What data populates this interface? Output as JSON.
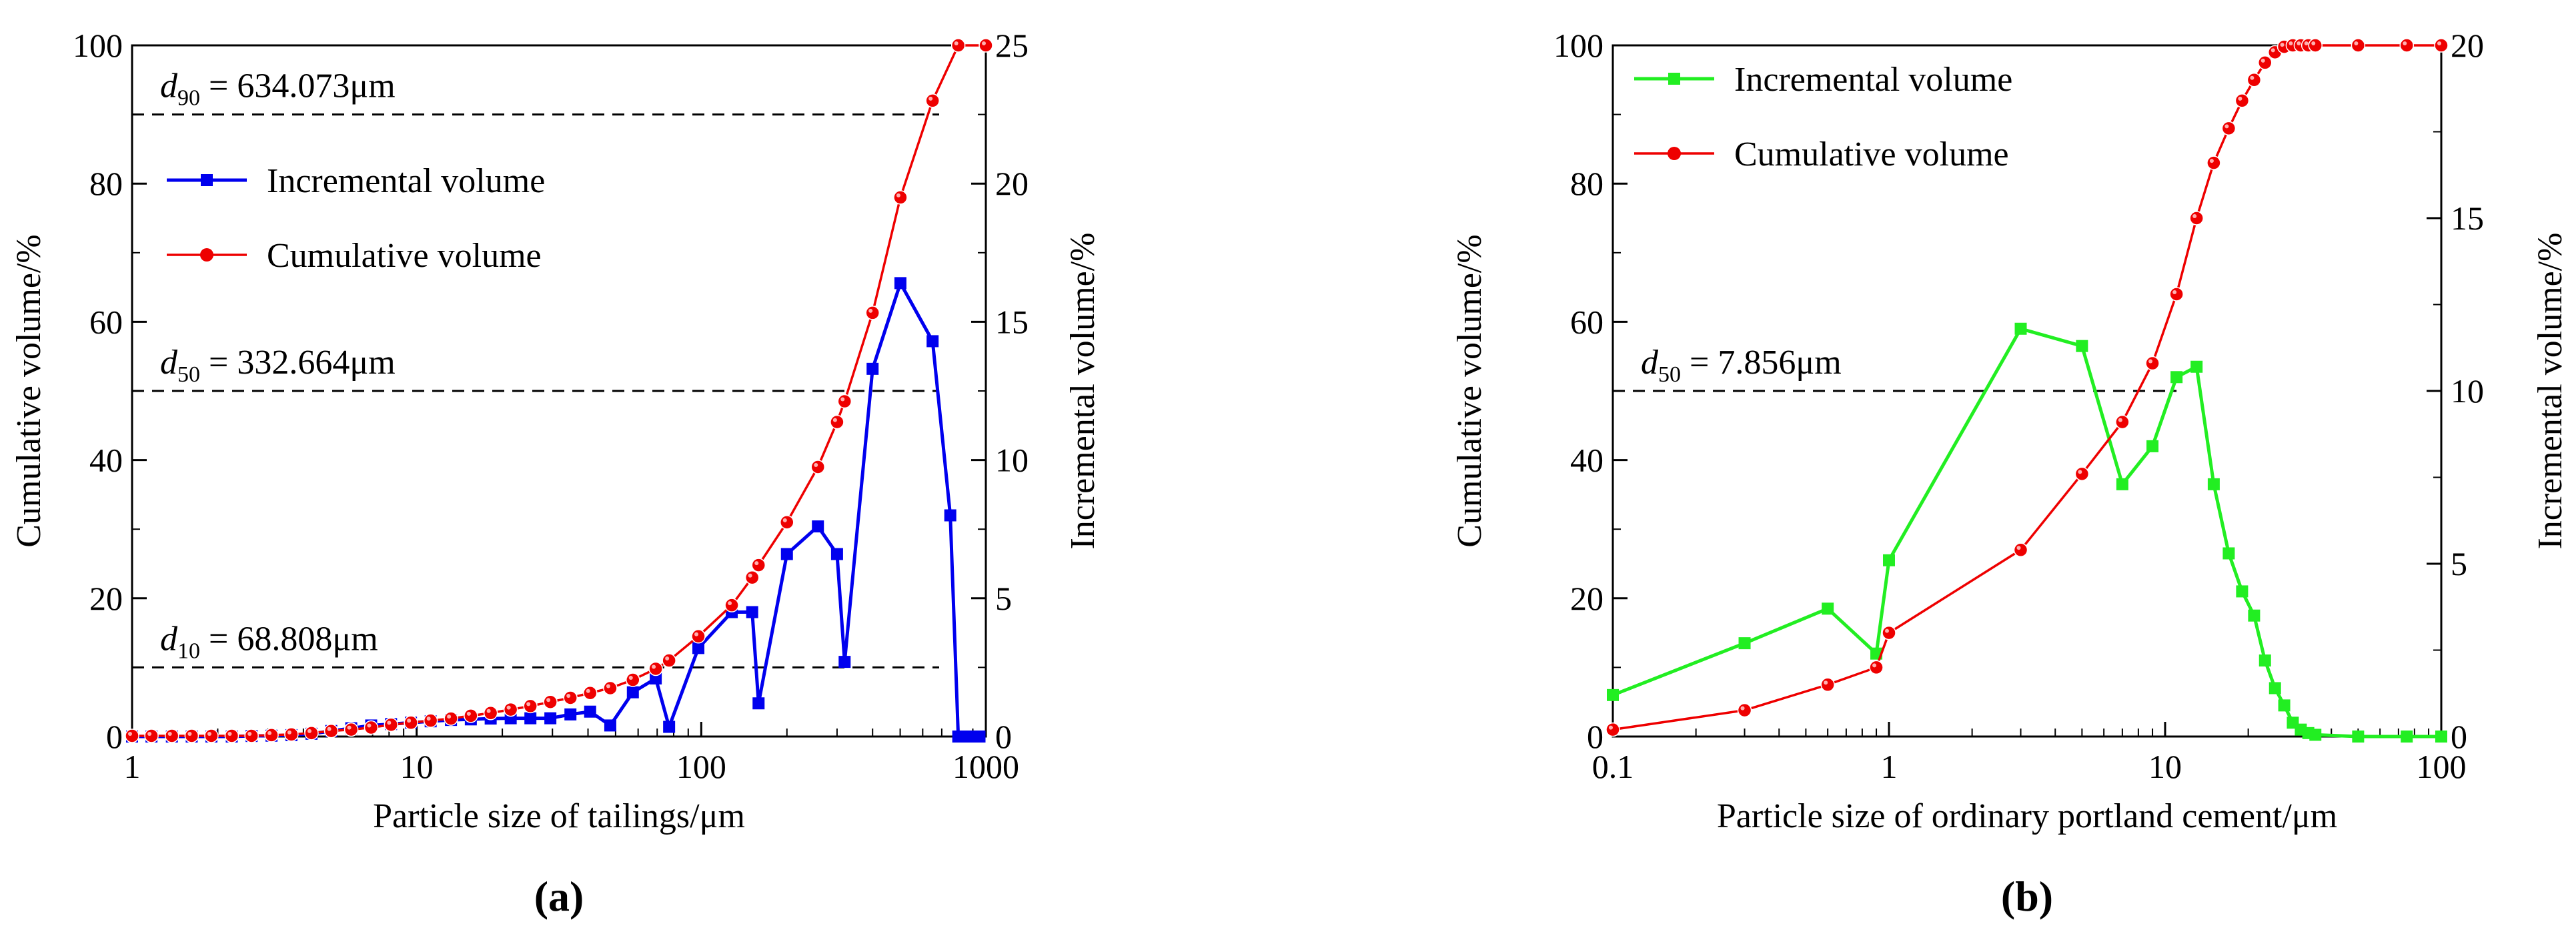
{
  "chart_data": [
    {
      "panel": "a",
      "type": "line",
      "caption": "(a)",
      "xlabel": "Particle size of tailings/μm",
      "ylabel_left": "Cumulative volume/%",
      "ylabel_right": "Incremental volume/%",
      "xscale": "log",
      "xlim": [
        1,
        1000
      ],
      "ylim_left": [
        0,
        100
      ],
      "ylim_right": [
        0,
        25
      ],
      "x_ticks": [
        1,
        10,
        100,
        1000
      ],
      "x_tick_labels": [
        "1",
        "10",
        "100",
        "1000"
      ],
      "y_left_ticks": [
        0,
        20,
        40,
        60,
        80,
        100
      ],
      "y_left_tick_labels": [
        "0",
        "20",
        "40",
        "60",
        "80",
        "100"
      ],
      "y_right_ticks": [
        0,
        5,
        10,
        15,
        20,
        25
      ],
      "y_right_tick_labels": [
        "0",
        "5",
        "10",
        "15",
        "20",
        "25"
      ],
      "legend_position": "upper-left",
      "reference_lines": [
        {
          "name": "d90",
          "sym": "d",
          "sub": "90",
          "text": " = 634.073μm",
          "y": 90
        },
        {
          "name": "d50",
          "sym": "d",
          "sub": "50",
          "text": " = 332.664μm",
          "y": 50
        },
        {
          "name": "d10",
          "sym": "d",
          "sub": "10",
          "text": " = 68.808μm",
          "y": 10
        }
      ],
      "series": [
        {
          "name": "Incremental volume",
          "axis": "right",
          "color": "#0000ee",
          "marker": "square",
          "points": [
            [
              1,
              0
            ],
            [
              1.17,
              0
            ],
            [
              1.38,
              0
            ],
            [
              1.62,
              0
            ],
            [
              1.9,
              0
            ],
            [
              2.24,
              0
            ],
            [
              2.63,
              0.02
            ],
            [
              3.09,
              0.03
            ],
            [
              3.63,
              0.05
            ],
            [
              4.27,
              0.1
            ],
            [
              5.01,
              0.2
            ],
            [
              5.89,
              0.3
            ],
            [
              6.92,
              0.4
            ],
            [
              8.13,
              0.45
            ],
            [
              9.55,
              0.5
            ],
            [
              11.2,
              0.55
            ],
            [
              13.2,
              0.6
            ],
            [
              15.5,
              0.62
            ],
            [
              18.2,
              0.65
            ],
            [
              21.4,
              0.66
            ],
            [
              25.1,
              0.66
            ],
            [
              29.5,
              0.66
            ],
            [
              34.7,
              0.8
            ],
            [
              40.7,
              0.9
            ],
            [
              47.9,
              0.4
            ],
            [
              57.5,
              1.6
            ],
            [
              69.2,
              2.1
            ],
            [
              77.1,
              0.35
            ],
            [
              97.7,
              3.2
            ],
            [
              128,
              4.5
            ],
            [
              151,
              4.5
            ],
            [
              159,
              1.2
            ],
            [
              200,
              6.6
            ],
            [
              257,
              7.6
            ],
            [
              300,
              6.6
            ],
            [
              319,
              2.7
            ],
            [
              400,
              13.3
            ],
            [
              501,
              16.4
            ],
            [
              650,
              14.3
            ],
            [
              750,
              8.0
            ],
            [
              800,
              0
            ],
            [
              850,
              0
            ],
            [
              900,
              0
            ],
            [
              950,
              0
            ]
          ]
        },
        {
          "name": "Cumulative volume",
          "axis": "left",
          "color": "#ee0000",
          "marker": "circle",
          "points": [
            [
              1,
              0.1
            ],
            [
              1.17,
              0.1
            ],
            [
              1.38,
              0.1
            ],
            [
              1.62,
              0.1
            ],
            [
              1.9,
              0.1
            ],
            [
              2.24,
              0.1
            ],
            [
              2.63,
              0.1
            ],
            [
              3.09,
              0.2
            ],
            [
              3.63,
              0.3
            ],
            [
              4.27,
              0.5
            ],
            [
              5.01,
              0.8
            ],
            [
              5.89,
              1.0
            ],
            [
              6.92,
              1.3
            ],
            [
              8.13,
              1.7
            ],
            [
              9.55,
              2.0
            ],
            [
              11.2,
              2.3
            ],
            [
              13.2,
              2.6
            ],
            [
              15.5,
              3.0
            ],
            [
              18.2,
              3.4
            ],
            [
              21.4,
              3.9
            ],
            [
              25.1,
              4.4
            ],
            [
              29.5,
              5.0
            ],
            [
              34.7,
              5.6
            ],
            [
              40.7,
              6.3
            ],
            [
              47.9,
              7.0
            ],
            [
              57.5,
              8.2
            ],
            [
              69.2,
              9.8
            ],
            [
              77.1,
              11.0
            ],
            [
              97.7,
              14.5
            ],
            [
              128,
              19.0
            ],
            [
              151,
              23.0
            ],
            [
              159,
              24.8
            ],
            [
              200,
              31.0
            ],
            [
              257,
              39.0
            ],
            [
              300,
              45.5
            ],
            [
              319,
              48.5
            ],
            [
              400,
              61.3
            ],
            [
              501,
              78.0
            ],
            [
              650,
              92.0
            ],
            [
              800,
              100
            ],
            [
              1000,
              100
            ]
          ]
        }
      ]
    },
    {
      "panel": "b",
      "type": "line",
      "caption": "(b)",
      "xlabel": "Particle size of ordinary portland cement/μm",
      "ylabel_left": "Cumulative volume/%",
      "ylabel_right": "Incremental volume/%",
      "xscale": "log",
      "xlim": [
        0.1,
        100
      ],
      "ylim_left": [
        0,
        100
      ],
      "ylim_right": [
        0,
        20
      ],
      "x_ticks": [
        0.1,
        1,
        10,
        100
      ],
      "x_tick_labels": [
        "0.1",
        "1",
        "10",
        "100"
      ],
      "y_left_ticks": [
        0,
        20,
        40,
        60,
        80,
        100
      ],
      "y_left_tick_labels": [
        "0",
        "20",
        "40",
        "60",
        "80",
        "100"
      ],
      "y_right_ticks": [
        0,
        5,
        10,
        15,
        20
      ],
      "y_right_tick_labels": [
        "0",
        "5",
        "10",
        "15",
        "20"
      ],
      "legend_position": "upper-left",
      "reference_lines": [
        {
          "name": "d50",
          "sym": "d",
          "sub": "50",
          "text": " = 7.856μm",
          "y": 50
        }
      ],
      "series": [
        {
          "name": "Incremental volume",
          "axis": "right",
          "color": "#22ee22",
          "marker": "square",
          "points": [
            [
              0.1,
              1.2
            ],
            [
              0.3,
              2.7
            ],
            [
              0.6,
              3.7
            ],
            [
              0.9,
              2.4
            ],
            [
              1.0,
              5.1
            ],
            [
              3.0,
              11.8
            ],
            [
              5.0,
              11.3
            ],
            [
              7.0,
              7.3
            ],
            [
              9.0,
              8.4
            ],
            [
              11.0,
              10.4
            ],
            [
              13.0,
              10.7
            ],
            [
              15.0,
              7.3
            ],
            [
              17.0,
              5.3
            ],
            [
              19.0,
              4.2
            ],
            [
              21.0,
              3.5
            ],
            [
              23.0,
              2.2
            ],
            [
              25.0,
              1.4
            ],
            [
              27.0,
              0.9
            ],
            [
              29.0,
              0.4
            ],
            [
              31.0,
              0.2
            ],
            [
              33.0,
              0.1
            ],
            [
              35.0,
              0.05
            ],
            [
              50.0,
              0
            ],
            [
              75.0,
              0
            ],
            [
              100.0,
              0
            ]
          ]
        },
        {
          "name": "Cumulative volume",
          "axis": "left",
          "color": "#ee0000",
          "marker": "circle",
          "points": [
            [
              0.1,
              1.0
            ],
            [
              0.3,
              3.8
            ],
            [
              0.6,
              7.5
            ],
            [
              0.9,
              10.0
            ],
            [
              1.0,
              15.0
            ],
            [
              3.0,
              27.0
            ],
            [
              5.0,
              38.0
            ],
            [
              7.0,
              45.5
            ],
            [
              9.0,
              54.0
            ],
            [
              11.0,
              64.0
            ],
            [
              13.0,
              75.0
            ],
            [
              15.0,
              83.0
            ],
            [
              17.0,
              88.0
            ],
            [
              19.0,
              92.0
            ],
            [
              21.0,
              95.0
            ],
            [
              23.0,
              97.5
            ],
            [
              25.0,
              99.0
            ],
            [
              27.0,
              99.8
            ],
            [
              29.0,
              100
            ],
            [
              31.0,
              100
            ],
            [
              33.0,
              100
            ],
            [
              35.0,
              100
            ],
            [
              50.0,
              100
            ],
            [
              75.0,
              100
            ],
            [
              100.0,
              100
            ]
          ]
        }
      ]
    }
  ]
}
